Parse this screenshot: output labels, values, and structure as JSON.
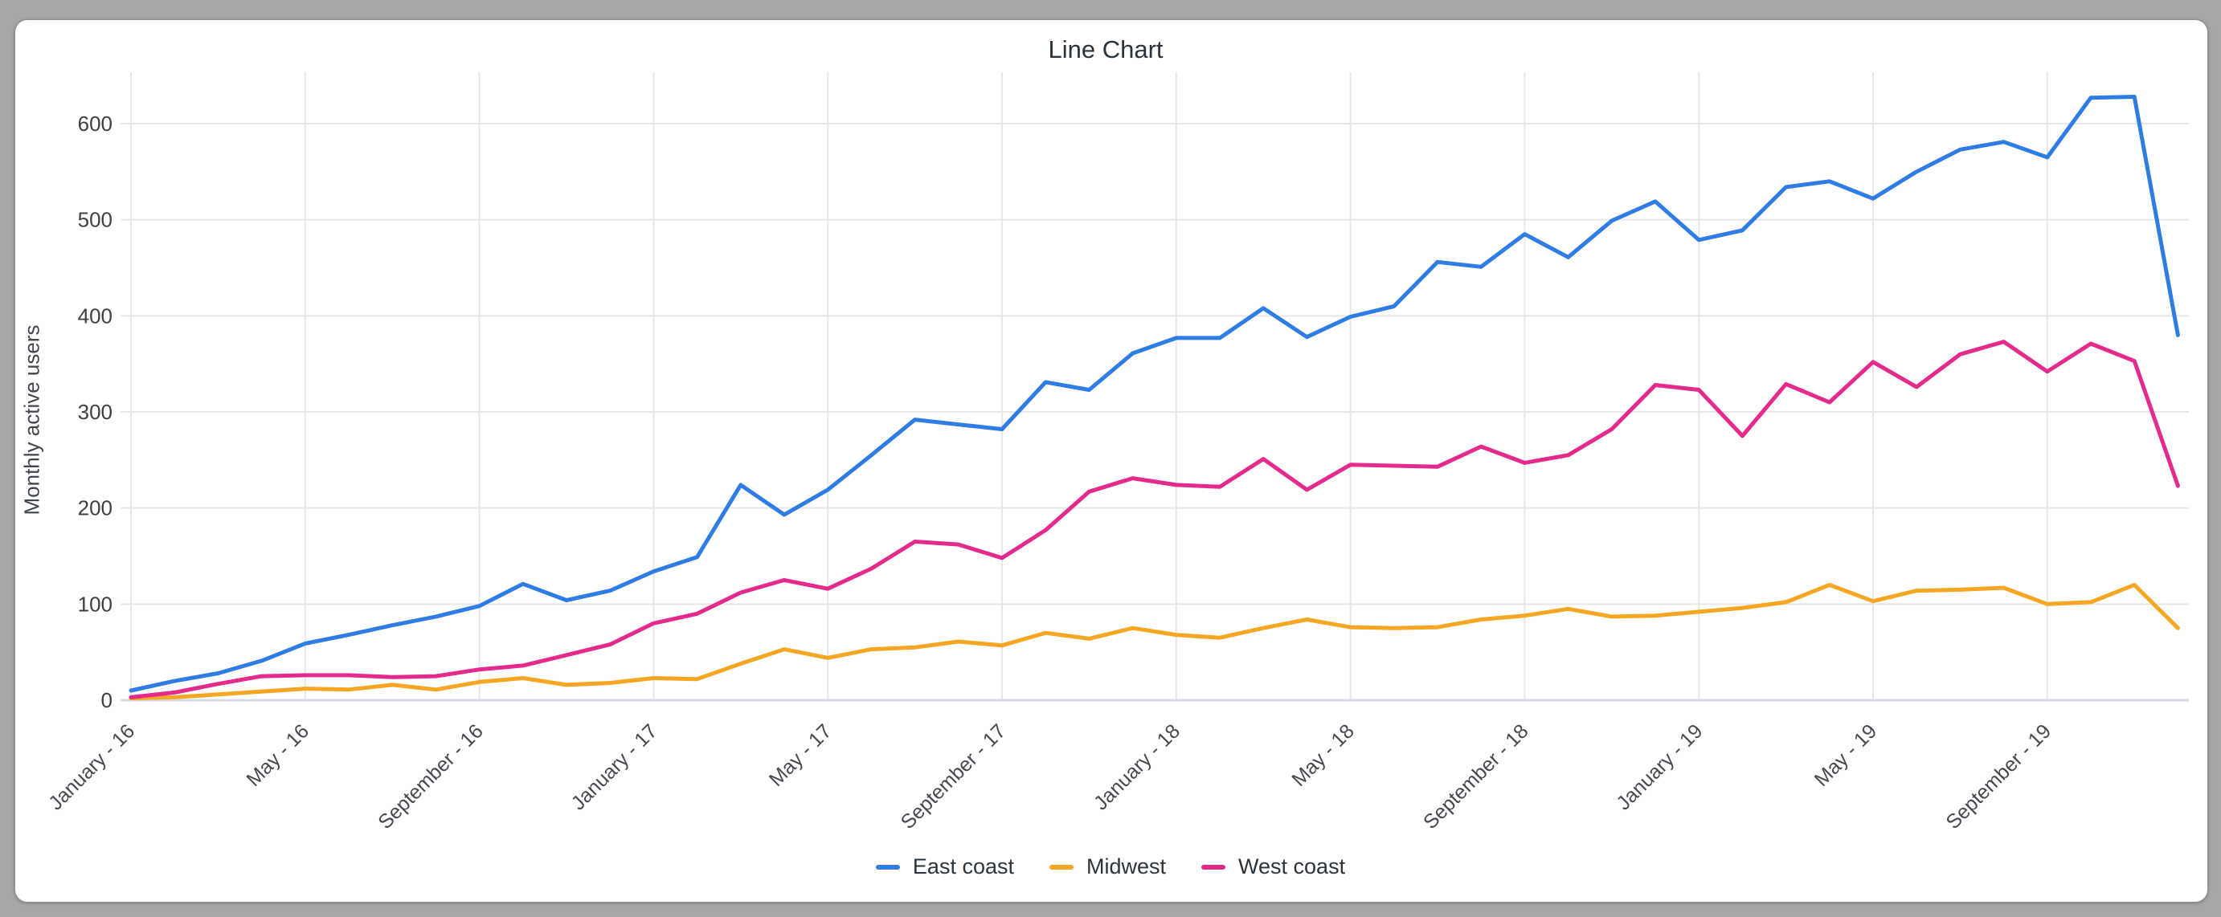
{
  "page": {
    "title": "Line Chart"
  },
  "chart": {
    "title": "Line Chart",
    "y_axis_label": "Monthly active users",
    "legend": [
      {
        "label": "East coast",
        "color": "#2e7ce4"
      },
      {
        "label": "Midwest",
        "color": "#f5a623"
      },
      {
        "label": "West coast",
        "color": "#e42a8d"
      }
    ]
  },
  "chart_data": {
    "type": "line",
    "title": "Line Chart",
    "xlabel": "",
    "ylabel": "Monthly active users",
    "ylim": [
      0,
      650
    ],
    "yticks": [
      0,
      100,
      200,
      300,
      400,
      500,
      600
    ],
    "grid": true,
    "legend_position": "bottom",
    "x_tick_step": 4,
    "x": [
      "January - 16",
      "February - 16",
      "March - 16",
      "April - 16",
      "May - 16",
      "June - 16",
      "July - 16",
      "August - 16",
      "September - 16",
      "October - 16",
      "November - 16",
      "December - 16",
      "January - 17",
      "February - 17",
      "March - 17",
      "April - 17",
      "May - 17",
      "June - 17",
      "July - 17",
      "August - 17",
      "September - 17",
      "October - 17",
      "November - 17",
      "December - 17",
      "January - 18",
      "February - 18",
      "March - 18",
      "April - 18",
      "May - 18",
      "June - 18",
      "July - 18",
      "August - 18",
      "September - 18",
      "October - 18",
      "November - 18",
      "December - 18",
      "January - 19",
      "February - 19",
      "March - 19",
      "April - 19",
      "May - 19",
      "June - 19",
      "July - 19",
      "August - 19",
      "September - 19",
      "October - 19",
      "November - 19",
      "December - 19"
    ],
    "series": [
      {
        "name": "East coast",
        "color": "#2e7ce4",
        "values": [
          10,
          20,
          28,
          41,
          59,
          68,
          78,
          87,
          98,
          121,
          104,
          114,
          134,
          149,
          224,
          193,
          219,
          255,
          292,
          287,
          282,
          331,
          323,
          361,
          377,
          377,
          408,
          378,
          399,
          410,
          456,
          451,
          485,
          461,
          499,
          519,
          479,
          489,
          534,
          540,
          522,
          550,
          573,
          581,
          565,
          627,
          628,
          380
        ]
      },
      {
        "name": "Midwest",
        "color": "#f5a623",
        "values": [
          2,
          3,
          6,
          9,
          12,
          11,
          16,
          11,
          19,
          23,
          16,
          18,
          23,
          22,
          38,
          53,
          44,
          53,
          55,
          61,
          57,
          70,
          64,
          75,
          68,
          65,
          75,
          84,
          76,
          75,
          76,
          84,
          88,
          95,
          87,
          88,
          92,
          96,
          102,
          120,
          103,
          114,
          115,
          117,
          100,
          102,
          120,
          75
        ]
      },
      {
        "name": "West coast",
        "color": "#e42a8d",
        "values": [
          3,
          8,
          17,
          25,
          26,
          26,
          24,
          25,
          32,
          36,
          47,
          58,
          80,
          90,
          112,
          125,
          116,
          137,
          165,
          162,
          148,
          177,
          217,
          231,
          224,
          222,
          251,
          219,
          245,
          244,
          243,
          264,
          247,
          255,
          282,
          328,
          323,
          275,
          329,
          310,
          352,
          326,
          360,
          373,
          342,
          371,
          353,
          223
        ]
      }
    ]
  }
}
